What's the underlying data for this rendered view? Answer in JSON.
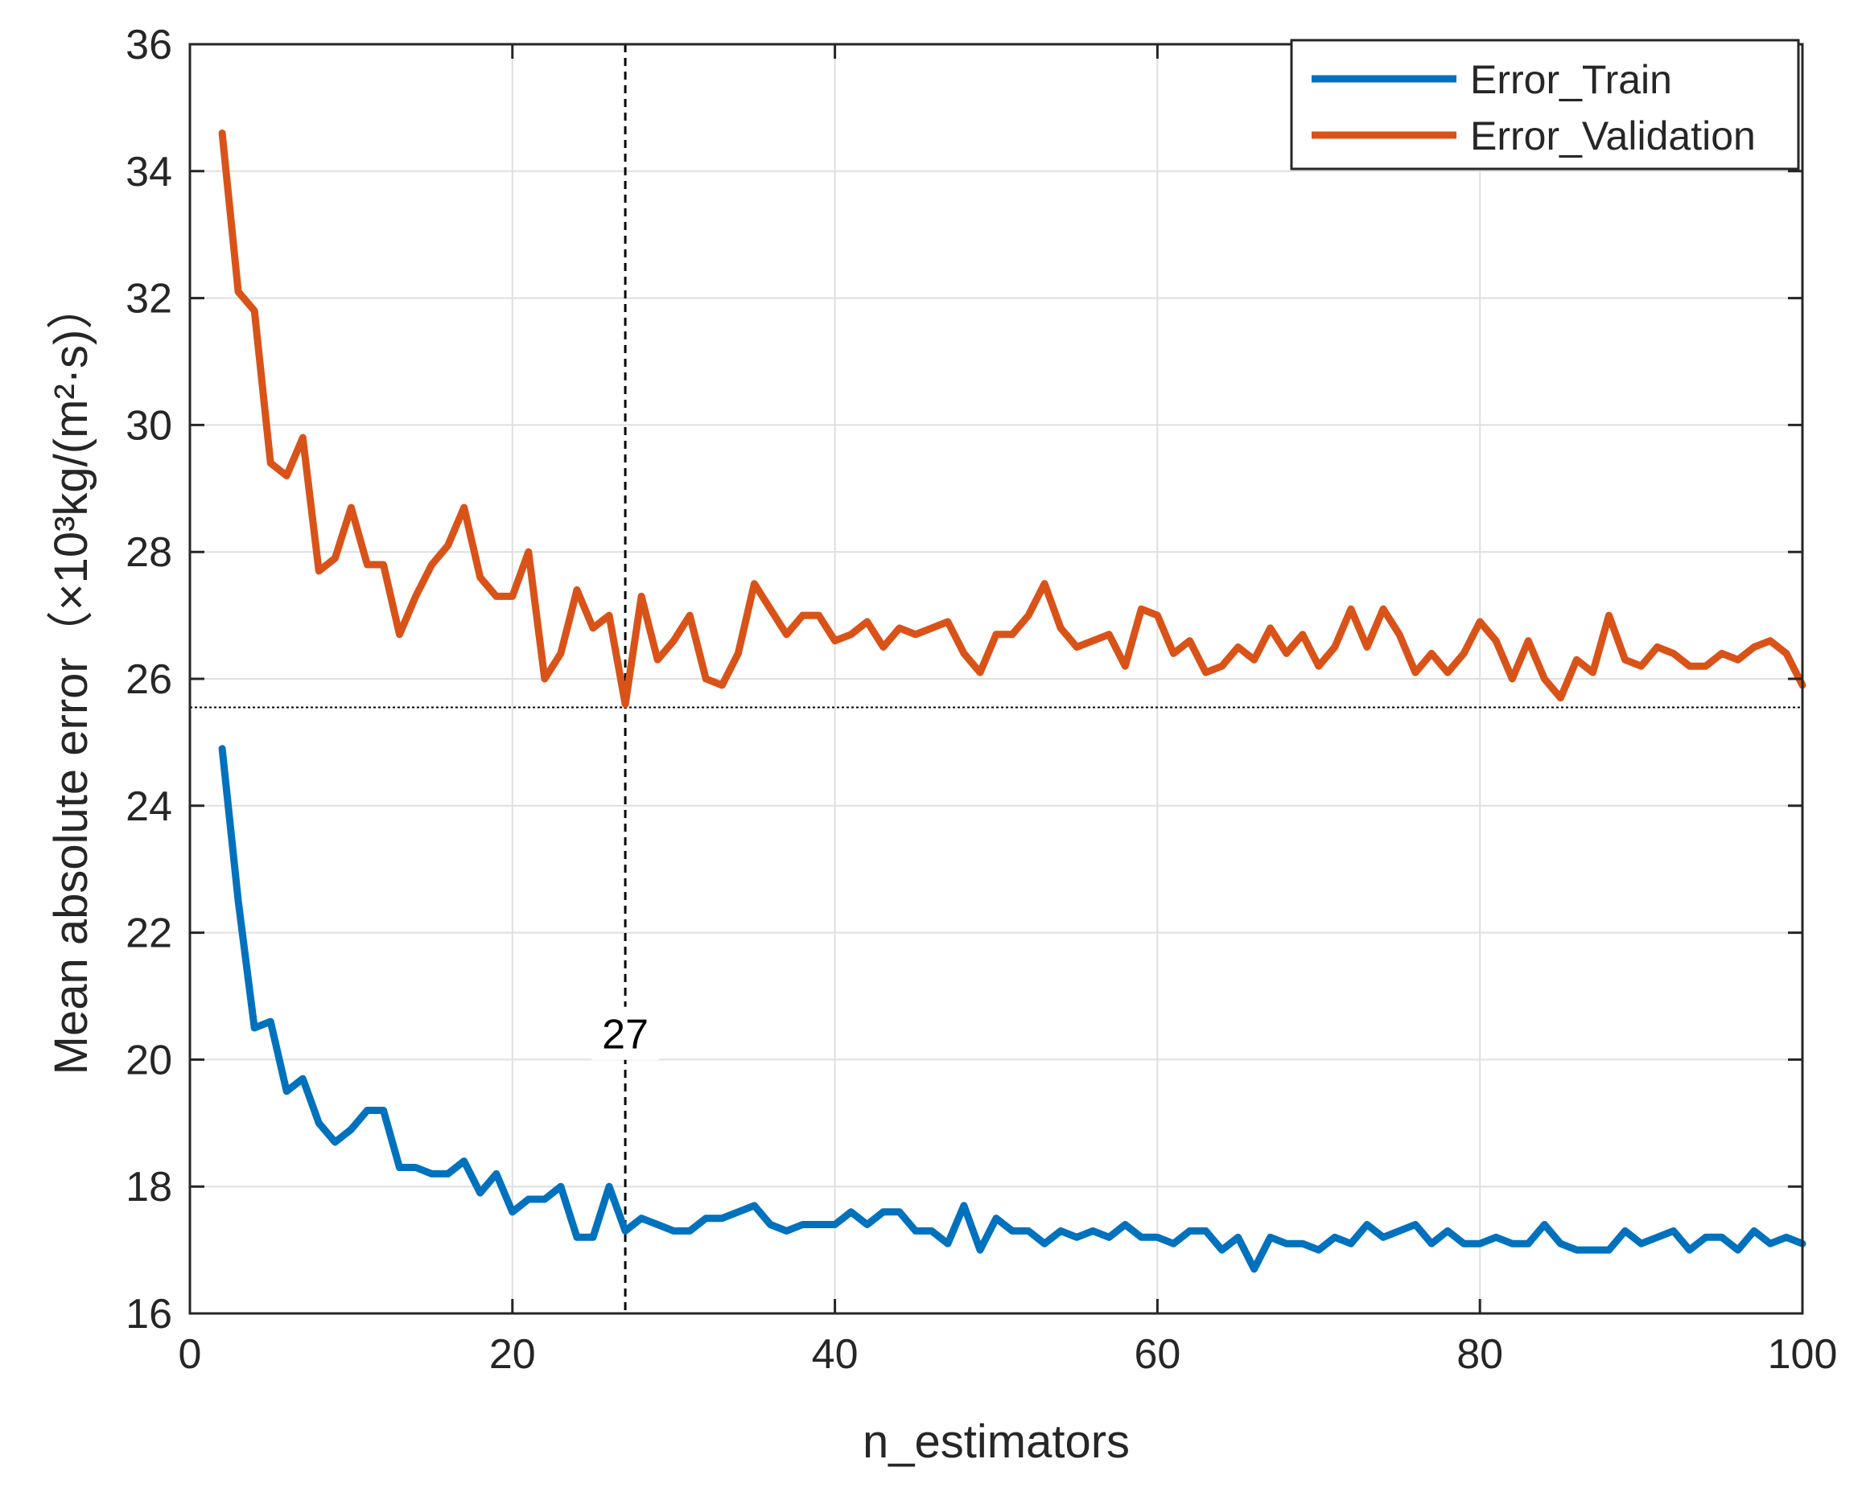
{
  "chart_data": {
    "type": "line",
    "xlabel": "n_estimators",
    "ylabel": "Mean absolute error（×10³kg/(m²·s)）",
    "xlim": [
      0,
      100
    ],
    "ylim": [
      16,
      36
    ],
    "x_ticks": [
      "0",
      "20",
      "40",
      "60",
      "80",
      "100"
    ],
    "y_ticks": [
      "16",
      "18",
      "20",
      "22",
      "24",
      "26",
      "28",
      "30",
      "32",
      "34",
      "36"
    ],
    "x_tick_values": [
      0,
      20,
      40,
      60,
      80,
      100
    ],
    "y_tick_values": [
      16,
      18,
      20,
      22,
      24,
      26,
      28,
      30,
      32,
      34,
      36
    ],
    "grid": true,
    "legend_position": "top-right",
    "annotation": {
      "text": "27",
      "x": 27,
      "y": 20.3
    },
    "reference_lines": {
      "vertical_x": 27,
      "horizontal_y": 25.55
    },
    "x": [
      2,
      3,
      4,
      5,
      6,
      7,
      8,
      9,
      10,
      11,
      12,
      13,
      14,
      15,
      16,
      17,
      18,
      19,
      20,
      21,
      22,
      23,
      24,
      25,
      26,
      27,
      28,
      29,
      30,
      31,
      32,
      33,
      34,
      35,
      36,
      37,
      38,
      39,
      40,
      41,
      42,
      43,
      44,
      45,
      46,
      47,
      48,
      49,
      50,
      51,
      52,
      53,
      54,
      55,
      56,
      57,
      58,
      59,
      60,
      61,
      62,
      63,
      64,
      65,
      66,
      67,
      68,
      69,
      70,
      71,
      72,
      73,
      74,
      75,
      76,
      77,
      78,
      79,
      80,
      81,
      82,
      83,
      84,
      85,
      86,
      87,
      88,
      89,
      90,
      91,
      92,
      93,
      94,
      95,
      96,
      97,
      98,
      99,
      100
    ],
    "series": [
      {
        "name": "Error_Train",
        "color": "#0072BD",
        "values": [
          24.9,
          22.5,
          20.5,
          20.6,
          19.5,
          19.7,
          19.0,
          18.7,
          18.9,
          19.2,
          19.2,
          18.3,
          18.3,
          18.2,
          18.2,
          18.4,
          17.9,
          18.2,
          17.6,
          17.8,
          17.8,
          18.0,
          17.2,
          17.2,
          18.0,
          17.3,
          17.5,
          17.4,
          17.3,
          17.3,
          17.5,
          17.5,
          17.6,
          17.7,
          17.4,
          17.3,
          17.4,
          17.4,
          17.4,
          17.6,
          17.4,
          17.6,
          17.6,
          17.3,
          17.3,
          17.1,
          17.7,
          17.0,
          17.5,
          17.3,
          17.3,
          17.1,
          17.3,
          17.2,
          17.3,
          17.2,
          17.4,
          17.2,
          17.2,
          17.1,
          17.3,
          17.3,
          17.0,
          17.2,
          16.7,
          17.2,
          17.1,
          17.1,
          17.0,
          17.2,
          17.1,
          17.4,
          17.2,
          17.3,
          17.4,
          17.1,
          17.3,
          17.1,
          17.1,
          17.2,
          17.1,
          17.1,
          17.4,
          17.1,
          17.0,
          17.0,
          17.0,
          17.3,
          17.1,
          17.2,
          17.3,
          17.0,
          17.2,
          17.2,
          17.0,
          17.3,
          17.1,
          17.2,
          17.1
        ]
      },
      {
        "name": "Error_Validation",
        "color": "#D95319",
        "values": [
          34.6,
          32.1,
          31.8,
          29.4,
          29.2,
          29.8,
          27.7,
          27.9,
          28.7,
          27.8,
          27.8,
          26.7,
          27.3,
          27.8,
          28.1,
          28.7,
          27.6,
          27.3,
          27.3,
          28.0,
          26.0,
          26.4,
          27.4,
          26.8,
          27.0,
          25.6,
          27.3,
          26.3,
          26.6,
          27.0,
          26.0,
          25.9,
          26.4,
          27.5,
          27.1,
          26.7,
          27.0,
          27.0,
          26.6,
          26.7,
          26.9,
          26.5,
          26.8,
          26.7,
          26.8,
          26.9,
          26.4,
          26.1,
          26.7,
          26.7,
          27.0,
          27.5,
          26.8,
          26.5,
          26.6,
          26.7,
          26.2,
          27.1,
          27.0,
          26.4,
          26.6,
          26.1,
          26.2,
          26.5,
          26.3,
          26.8,
          26.4,
          26.7,
          26.2,
          26.5,
          27.1,
          26.5,
          27.1,
          26.7,
          26.1,
          26.4,
          26.1,
          26.4,
          26.9,
          26.6,
          26.0,
          26.6,
          26.0,
          25.7,
          26.3,
          26.1,
          27.0,
          26.3,
          26.2,
          26.5,
          26.4,
          26.2,
          26.2,
          26.4,
          26.3,
          26.5,
          26.6,
          26.4,
          25.9
        ]
      }
    ]
  }
}
